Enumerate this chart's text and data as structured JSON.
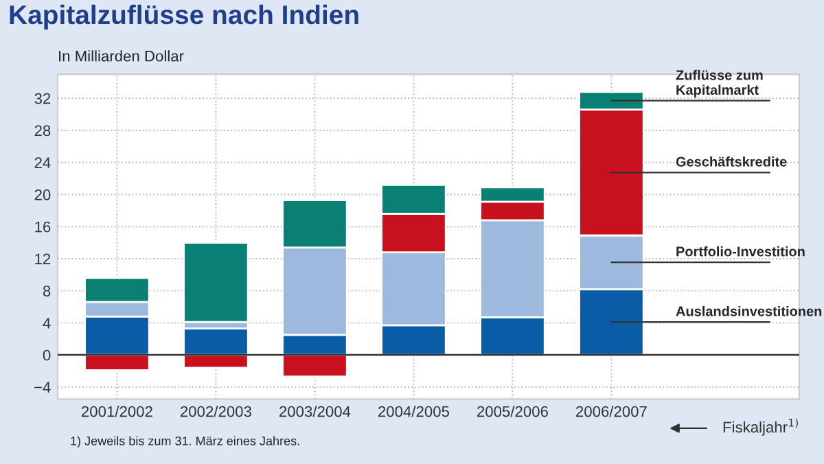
{
  "chart_data": {
    "type": "bar",
    "stacked": true,
    "title": "Kapitalzuflüsse nach Indien",
    "ylabel": "In Milliarden Dollar",
    "xlabel": "Fiskaljahr$^{1)}$",
    "categories": [
      "2001/2002",
      "2002/2003",
      "2003/2004",
      "2004/2005",
      "2005/2006",
      "2006/2007"
    ],
    "series": [
      {
        "name": "Auslandsinvestitionen",
        "color": "#0a5ca6",
        "values": [
          4.8,
          3.3,
          2.5,
          3.7,
          4.7,
          8.2
        ]
      },
      {
        "name": "Portfolio-Investition",
        "color": "#9dbade",
        "values": [
          1.8,
          0.8,
          10.9,
          9.1,
          12.1,
          6.7
        ]
      },
      {
        "name": "Geschäftskredite",
        "color": "#c8101e",
        "values": [
          -1.9,
          -1.6,
          -2.7,
          4.8,
          2.3,
          15.7
        ]
      },
      {
        "name": "Zuflüsse zum Kapitalmarkt",
        "color": "#0a8074",
        "values": [
          3.0,
          9.9,
          5.9,
          3.6,
          1.8,
          2.2
        ]
      }
    ],
    "ylim": [
      -5.5,
      35
    ],
    "yticks": [
      {
        "value": -4,
        "label": "−4"
      },
      0,
      4,
      8,
      12,
      16,
      20,
      24,
      28,
      32
    ],
    "grid": true,
    "annotations": [
      "1) Jeweils bis zum 31. März eines Jahres."
    ]
  }
}
